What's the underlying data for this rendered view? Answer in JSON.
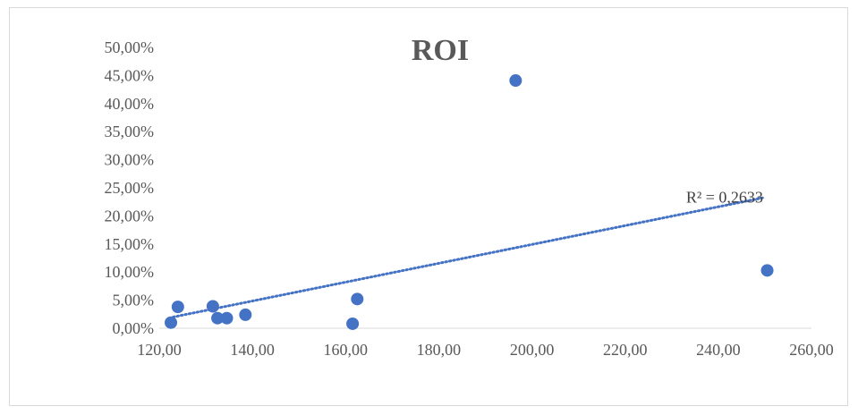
{
  "chart_data": {
    "type": "scatter",
    "title": "ROI",
    "xlim": [
      120,
      260
    ],
    "ylim": [
      0,
      0.5
    ],
    "x_ticks": [
      120,
      140,
      160,
      180,
      200,
      220,
      240,
      260
    ],
    "y_ticks": [
      0,
      0.05,
      0.1,
      0.15,
      0.2,
      0.25,
      0.3,
      0.35,
      0.4,
      0.45,
      0.5
    ],
    "x_tick_labels": [
      "120,00",
      "140,00",
      "160,00",
      "180,00",
      "200,00",
      "220,00",
      "240,00",
      "260,00"
    ],
    "y_tick_labels": [
      "0,00%",
      "5,00%",
      "10,00%",
      "15,00%",
      "20,00%",
      "25,00%",
      "30,00%",
      "35,00%",
      "40,00%",
      "45,00%",
      "50,00%"
    ],
    "grid": false,
    "legend": "none",
    "series": [
      {
        "color": "#4472c4",
        "points": [
          {
            "x": 122.5,
            "y": 0.01
          },
          {
            "x": 124.0,
            "y": 0.038
          },
          {
            "x": 131.5,
            "y": 0.039
          },
          {
            "x": 132.5,
            "y": 0.018
          },
          {
            "x": 134.5,
            "y": 0.018
          },
          {
            "x": 138.5,
            "y": 0.024
          },
          {
            "x": 161.5,
            "y": 0.008
          },
          {
            "x": 162.5,
            "y": 0.052
          },
          {
            "x": 196.5,
            "y": 0.441
          },
          {
            "x": 250.5,
            "y": 0.103
          }
        ]
      }
    ],
    "trendline": {
      "type": "linear",
      "style": "dotted",
      "color": "#4472c4",
      "x_start": 123,
      "x_end": 250,
      "y_start": 0.02,
      "y_end": 0.233,
      "label": "R² = 0,2633"
    }
  }
}
